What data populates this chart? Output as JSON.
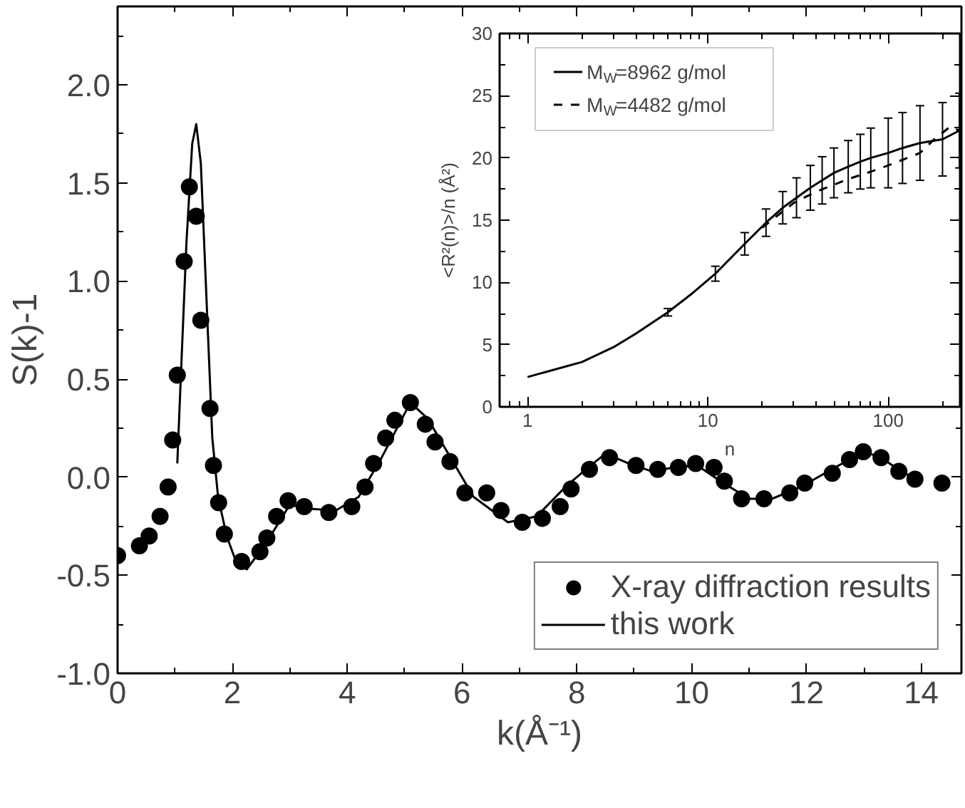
{
  "chart_data": [
    {
      "type": "scatter",
      "xlabel": "k(Å⁻¹)",
      "ylabel": "S(k)-1",
      "xlim": [
        0,
        14.7
      ],
      "ylim": [
        -1,
        2.4
      ],
      "xticks": [
        0,
        2,
        4,
        6,
        8,
        10,
        12,
        14
      ],
      "yticks": [
        {
          "value": -1,
          "label": "-1.0"
        },
        {
          "value": -0.5,
          "label": "-0.5"
        },
        {
          "value": 0,
          "label": "0.0"
        },
        {
          "value": 0.5,
          "label": "0.5"
        },
        {
          "value": 1,
          "label": "1.0"
        },
        {
          "value": 1.5,
          "label": "1.5"
        },
        {
          "value": 2,
          "label": "2.0"
        }
      ],
      "grid": false,
      "legend": "bottom right",
      "series": [
        {
          "name": "X-ray diffraction results",
          "type": "scatter",
          "marker": "circle",
          "color": "#000000",
          "x": [
            0,
            0.38,
            0.55,
            0.74,
            0.88,
            0.96,
            1.04,
            1.16,
            1.25,
            1.37,
            1.45,
            1.61,
            1.67,
            1.76,
            1.86,
            2.16,
            2.48,
            2.6,
            2.77,
            2.97,
            3.25,
            3.68,
            4.08,
            4.31,
            4.46,
            4.67,
            4.83,
            5.1,
            5.36,
            5.53,
            5.79,
            6.05,
            6.43,
            6.68,
            7.05,
            7.4,
            7.71,
            7.9,
            8.22,
            8.57,
            9.03,
            9.41,
            9.77,
            10.07,
            10.39,
            10.57,
            10.87,
            11.26,
            11.71,
            11.97,
            12.45,
            12.75,
            12.99,
            13.3,
            13.61,
            13.89,
            14.36
          ],
          "values": [
            -0.4,
            -0.35,
            -0.3,
            -0.2,
            -0.05,
            0.19,
            0.52,
            1.1,
            1.48,
            1.33,
            0.8,
            0.35,
            0.06,
            -0.13,
            -0.29,
            -0.43,
            -0.38,
            -0.31,
            -0.2,
            -0.12,
            -0.15,
            -0.18,
            -0.15,
            -0.05,
            0.07,
            0.2,
            0.29,
            0.38,
            0.27,
            0.18,
            0.08,
            -0.08,
            -0.08,
            -0.17,
            -0.23,
            -0.21,
            -0.15,
            -0.06,
            0.04,
            0.1,
            0.06,
            0.04,
            0.05,
            0.07,
            0.05,
            -0.02,
            -0.11,
            -0.11,
            -0.08,
            -0.03,
            0.02,
            0.09,
            0.13,
            0.1,
            0.03,
            -0.01,
            -0.03
          ]
        },
        {
          "name": "this work",
          "type": "line",
          "color": "#000000",
          "x": [
            1.04,
            1.1,
            1.2,
            1.3,
            1.37,
            1.45,
            1.55,
            1.65,
            1.75,
            1.9,
            2.05,
            2.25,
            2.6,
            3.0,
            3.3,
            3.8,
            4.2,
            4.6,
            5.1,
            5.4,
            5.8,
            6.2,
            6.8,
            7.3,
            7.8,
            8.2,
            8.5,
            8.9,
            9.3,
            9.7,
            10.1,
            10.5,
            11.0,
            11.4,
            11.9,
            12.5,
            13.0,
            13.3,
            13.7,
            13.9
          ],
          "values": [
            0.07,
            0.5,
            1.2,
            1.7,
            1.8,
            1.6,
            0.9,
            0.2,
            -0.1,
            -0.3,
            -0.42,
            -0.47,
            -0.33,
            -0.14,
            -0.16,
            -0.17,
            -0.1,
            0.1,
            0.38,
            0.3,
            0.1,
            -0.1,
            -0.23,
            -0.2,
            -0.05,
            0.05,
            0.12,
            0.07,
            0.03,
            0.05,
            0.06,
            -0.02,
            -0.11,
            -0.11,
            -0.05,
            0.05,
            0.13,
            0.1,
            0.02,
            0.0
          ]
        }
      ]
    },
    {
      "type": "line",
      "xlabel": "n",
      "ylabel": "<R²(n)>/n (Å²)",
      "log": "x",
      "xlim": [
        0.7,
        250
      ],
      "ylim": [
        0,
        30
      ],
      "xticks": [
        1,
        10,
        100
      ],
      "yticks": [
        0,
        5,
        10,
        15,
        20,
        25,
        30
      ],
      "grid": false,
      "legend": "top left",
      "series": [
        {
          "name": "M$_{W}$=8962 g/mol",
          "color": "#000000",
          "line_style": "solid",
          "x": [
            1,
            2,
            3,
            4,
            6,
            8,
            11,
            16,
            21,
            26,
            31,
            37,
            43,
            50,
            60,
            70,
            80,
            100,
            120,
            150,
            200,
            248
          ],
          "values": [
            2.4,
            3.6,
            4.8,
            5.9,
            7.6,
            9.0,
            10.7,
            13.1,
            14.8,
            16.0,
            16.8,
            17.6,
            18.2,
            18.8,
            19.3,
            19.7,
            20.0,
            20.4,
            20.8,
            21.2,
            21.5,
            22.2
          ],
          "errors": [
            null,
            null,
            null,
            null,
            0.3,
            null,
            0.6,
            0.9,
            1.1,
            1.3,
            1.6,
            1.8,
            1.9,
            2.0,
            2.1,
            2.2,
            2.4,
            2.8,
            2.85,
            3.0,
            2.95,
            3.0
          ]
        },
        {
          "name": "M$_{W}$=4482 g/mol",
          "color": "#000000",
          "line_style": "dashed",
          "x": [
            20,
            30,
            40,
            60,
            80,
            100,
            150,
            180,
            220,
            248
          ],
          "values": [
            14.4,
            16.4,
            17.3,
            18.3,
            18.9,
            19.4,
            20.4,
            21.5,
            22.5,
            22.2
          ]
        }
      ]
    }
  ]
}
